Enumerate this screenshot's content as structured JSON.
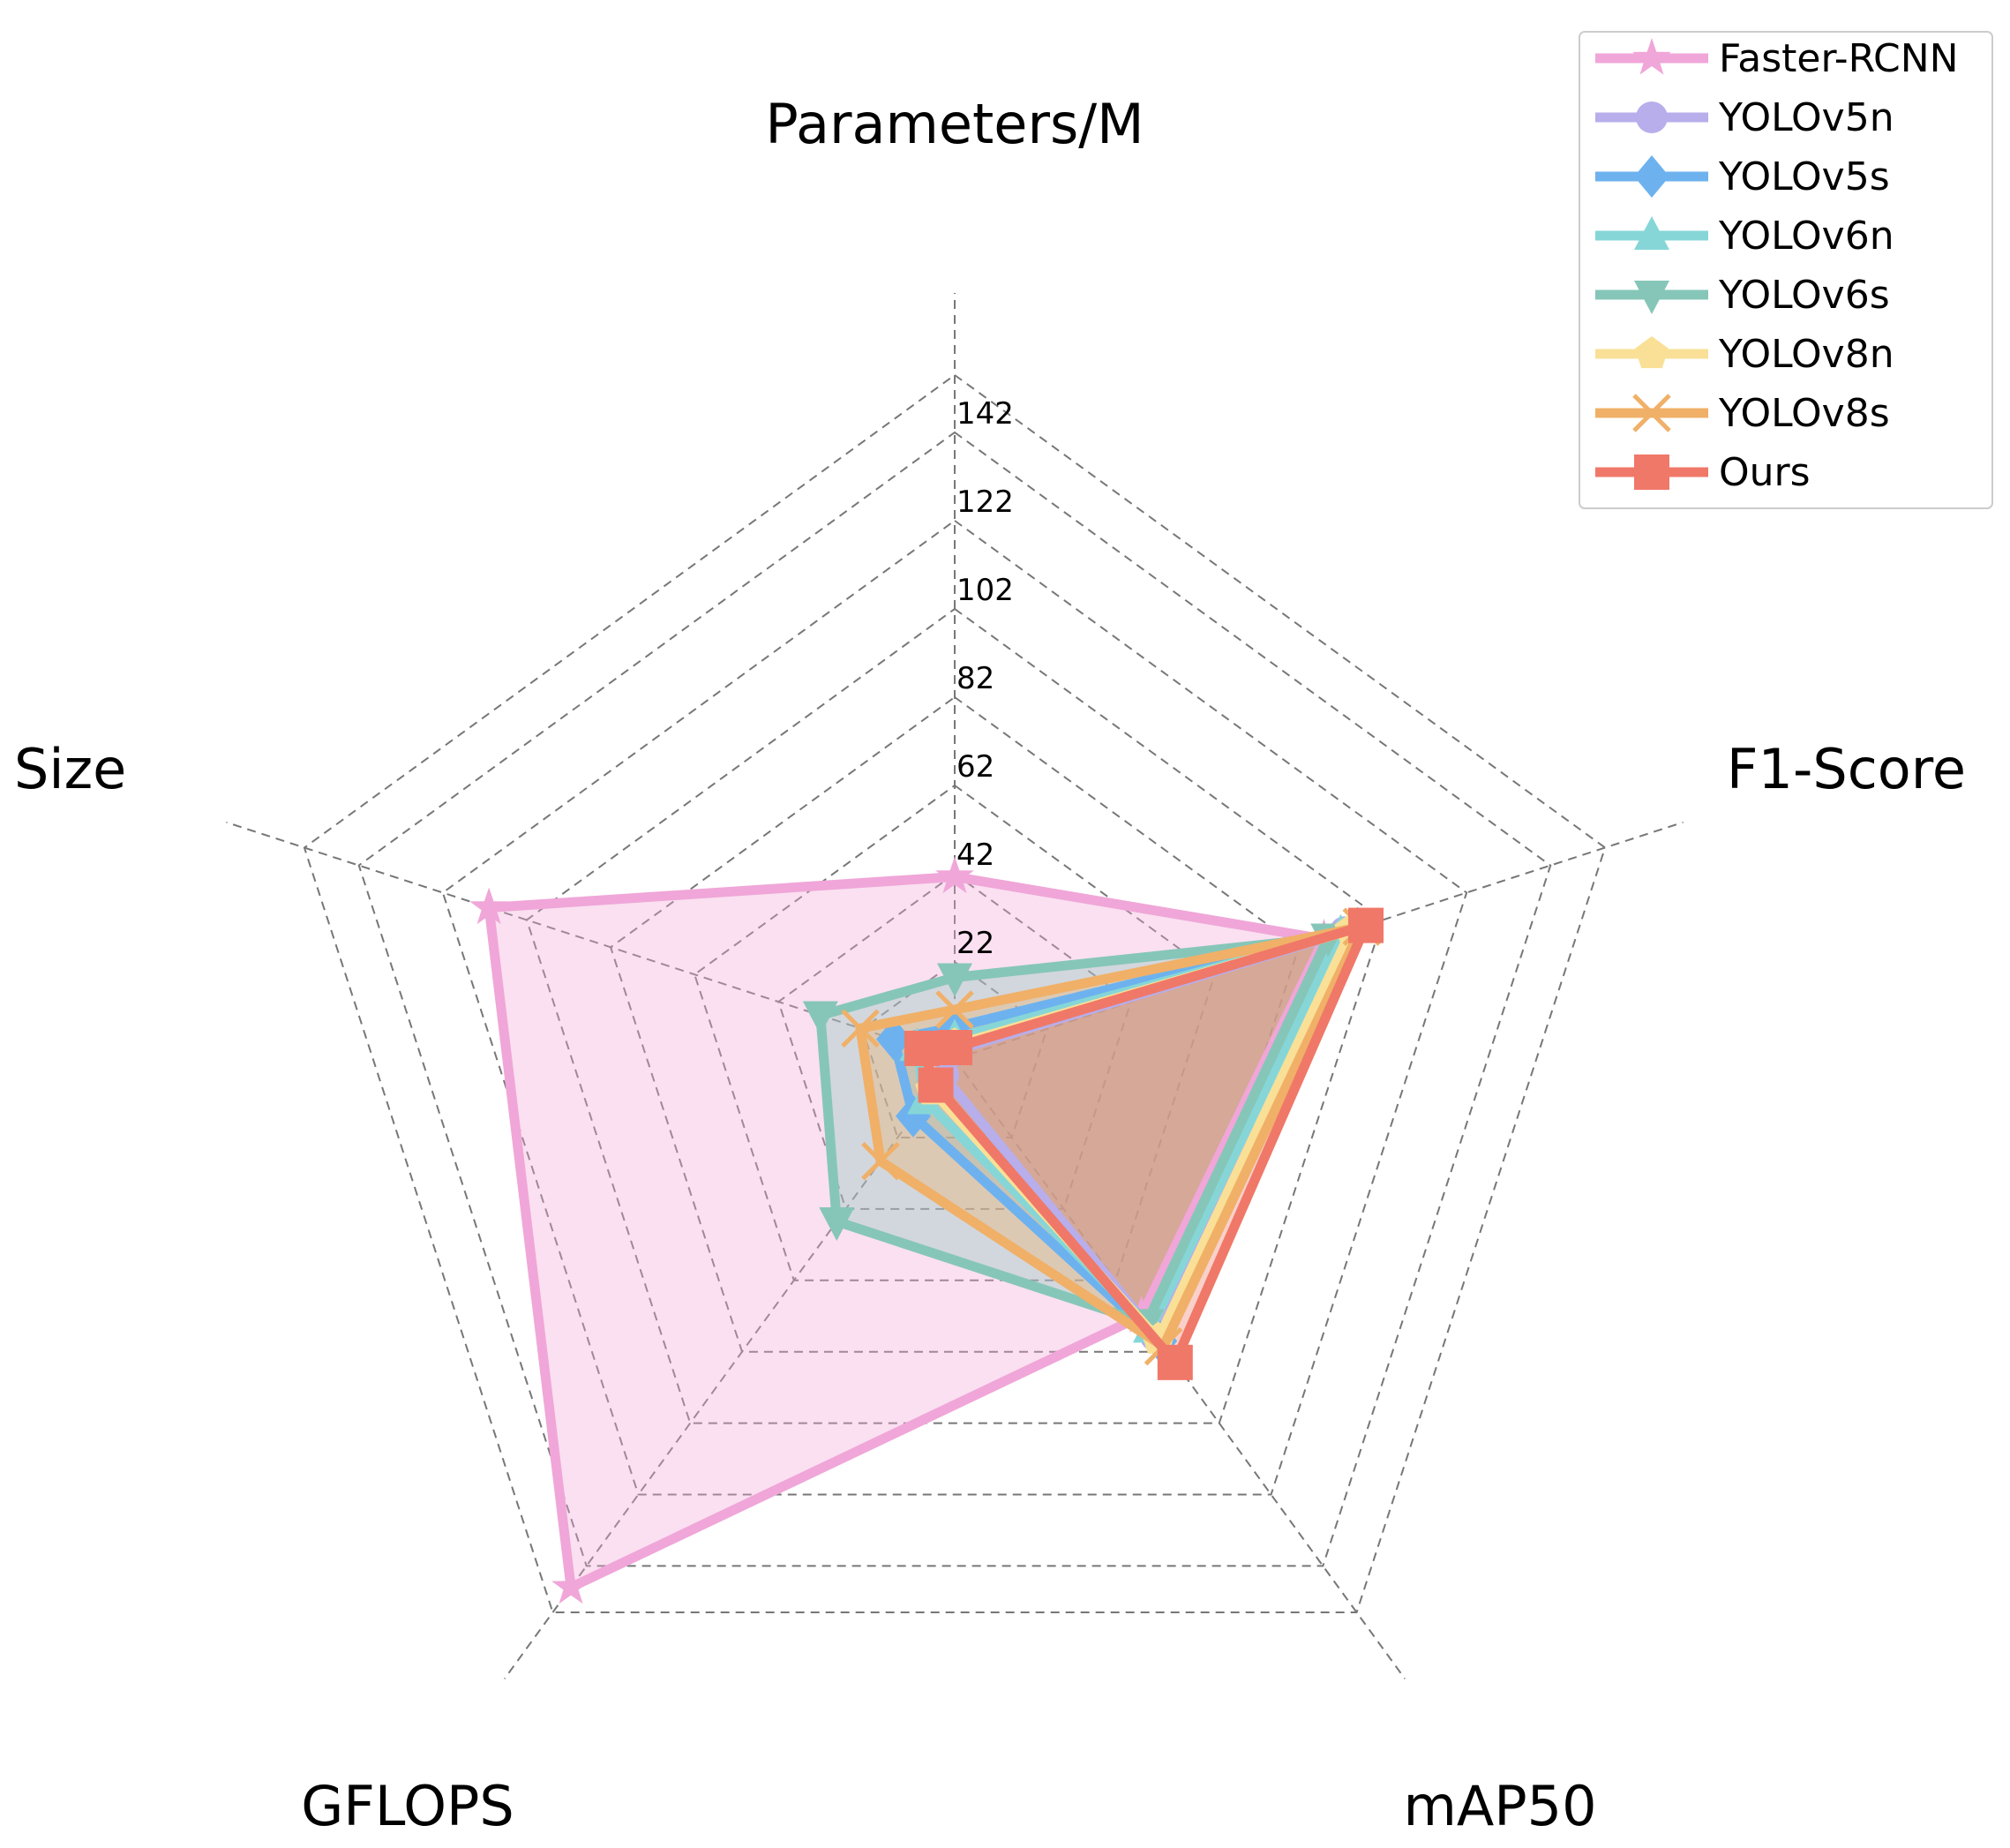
{
  "chart_data": {
    "type": "radar",
    "axes": [
      "Parameters/M",
      "F1-Score",
      "mAP50",
      "GFLOPS",
      "Size"
    ],
    "radial_ticks": [
      "22",
      "42",
      "62",
      "82",
      "102",
      "122",
      "142"
    ],
    "rmin": 0,
    "rmax": 155,
    "grid": true,
    "legend_position": "top-right",
    "series": [
      {
        "name": "Faster-RCNN",
        "color": "#F0A6D8",
        "marker": "star",
        "fill": true,
        "values": [
          41.3,
          88.0,
          72.0,
          148.0,
          111.0
        ]
      },
      {
        "name": "YOLOv5n",
        "color": "#B7AEEB",
        "marker": "circle",
        "fill": false,
        "values": [
          1.9,
          93.0,
          77.5,
          4.5,
          4.0
        ]
      },
      {
        "name": "YOLOv5s",
        "color": "#6DB2EE",
        "marker": "diamond",
        "fill": true,
        "values": [
          7.2,
          96.0,
          79.0,
          16.0,
          14.5
        ]
      },
      {
        "name": "YOLOv6n",
        "color": "#86D6D8",
        "marker": "triangle-up",
        "fill": false,
        "values": [
          4.7,
          92.0,
          75.5,
          11.5,
          9.0
        ]
      },
      {
        "name": "YOLOv6s",
        "color": "#86C6B8",
        "marker": "triangle-down",
        "fill": true,
        "values": [
          18.5,
          89.0,
          74.0,
          45.5,
          32.0
        ]
      },
      {
        "name": "YOLOv8n",
        "color": "#F9E096",
        "marker": "pentagon",
        "fill": false,
        "values": [
          3.2,
          94.5,
          78.5,
          8.7,
          6.2
        ]
      },
      {
        "name": "YOLOv8s",
        "color": "#F0B068",
        "marker": "x",
        "fill": true,
        "values": [
          11.2,
          97.0,
          80.5,
          28.6,
          22.5
        ]
      },
      {
        "name": "Ours",
        "color": "#F07868",
        "marker": "square",
        "fill": true,
        "values": [
          2.6,
          98.0,
          85.0,
          7.3,
          7.8
        ]
      }
    ]
  }
}
